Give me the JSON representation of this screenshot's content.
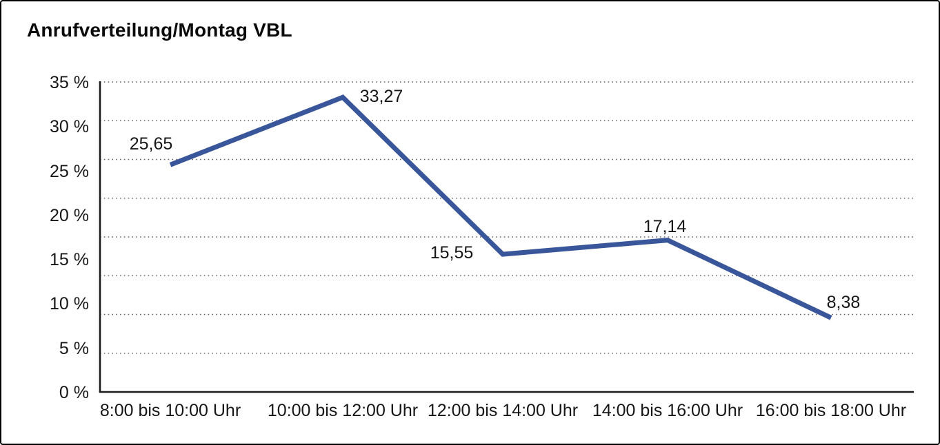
{
  "chart_data": {
    "type": "line",
    "title": "Anrufverteilung/Montag VBL",
    "categories": [
      "8:00 bis 10:00 Uhr",
      "10:00 bis 12:00 Uhr",
      "12:00 bis 14:00 Uhr",
      "14:00 bis 16:00 Uhr",
      "16:00 bis 18:00 Uhr"
    ],
    "values": [
      25.65,
      33.27,
      15.55,
      17.14,
      8.38
    ],
    "value_labels": [
      "25,65",
      "33,27",
      "15,55",
      "17,14",
      "8,38"
    ],
    "y_ticks": [
      {
        "label": "35 %",
        "value": 35
      },
      {
        "label": "30 %",
        "value": 30
      },
      {
        "label": "25 %",
        "value": 25
      },
      {
        "label": "20 %",
        "value": 20
      },
      {
        "label": "15 %",
        "value": 15
      },
      {
        "label": "10 %",
        "value": 10
      },
      {
        "label": "5 %",
        "value": 5
      },
      {
        "label": "0 %",
        "value": 0
      }
    ],
    "ylim": [
      0,
      35
    ],
    "xlabel": "",
    "ylabel": "",
    "legend": "none",
    "grid": "horizontal-dotted",
    "line_color": "#3A569B"
  }
}
